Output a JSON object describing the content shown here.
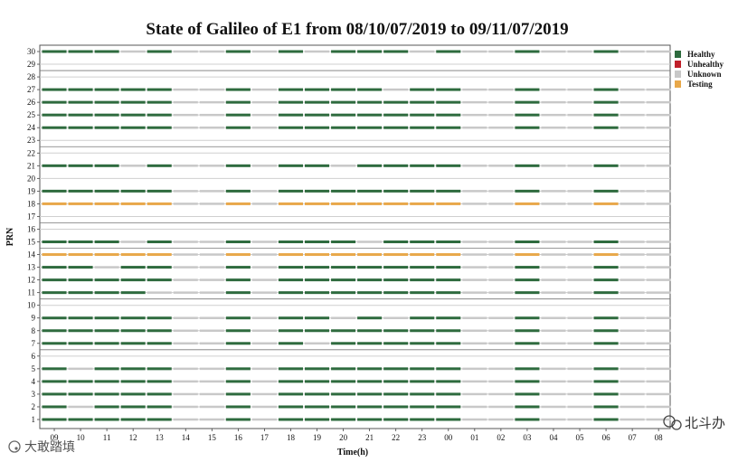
{
  "chart_data": {
    "type": "timeline",
    "title": "State of Galileo of E1 from 08/10/07/2019 to 09/11/07/2019",
    "xlabel": "Time(h)",
    "ylabel": "PRN",
    "x_ticks": [
      "09",
      "10",
      "11",
      "12",
      "13",
      "14",
      "15",
      "16",
      "17",
      "18",
      "19",
      "20",
      "21",
      "22",
      "23",
      "00",
      "01",
      "02",
      "03",
      "04",
      "05",
      "06",
      "07",
      "08"
    ],
    "y_ticks": [
      1,
      2,
      3,
      4,
      5,
      6,
      7,
      8,
      9,
      10,
      11,
      12,
      13,
      14,
      15,
      16,
      17,
      18,
      19,
      20,
      21,
      22,
      23,
      24,
      25,
      26,
      27,
      28,
      29,
      30
    ],
    "legend": [
      {
        "label": "Healthy",
        "color": "#2e6b3e"
      },
      {
        "label": "Unhealthy",
        "color": "#c0202a"
      },
      {
        "label": "Unknown",
        "color": "#c8c8c8"
      },
      {
        "label": "Testing",
        "color": "#e8a84a"
      }
    ],
    "legend_position": "top-right",
    "state_codes": {
      "H": "Healthy",
      "U": "Unknown",
      "T": "Testing"
    },
    "rows": [
      {
        "prn": 30,
        "states": "HHHUHUUHUHUHHHUHUUHUUHUU"
      },
      {
        "prn": 27,
        "states": "HHHHHUUHUHHHHUHHUUHUUHUU"
      },
      {
        "prn": 26,
        "states": "HHHHHUUHUHHHHHHHUUHUUHUU"
      },
      {
        "prn": 25,
        "states": "HHHHHUUHUHHHHHHHUUHUUHUU"
      },
      {
        "prn": 24,
        "states": "HHHHHUUHUHHHHHHHUUHUUHUU"
      },
      {
        "prn": 21,
        "states": "HHHUHUUHUHHUHHHHUUHUUHUU"
      },
      {
        "prn": 19,
        "states": "HHHHHUUHUHHHHHHHUUHUUHUU"
      },
      {
        "prn": 18,
        "states": "TTTTTUUTUTTTTTTTUUTUUTUU"
      },
      {
        "prn": 15,
        "states": "HHHUHUUHUHHHUHHHUUHUUHUU"
      },
      {
        "prn": 14,
        "states": "TTTTTUUTUTTTTTTTUUTUUTUU"
      },
      {
        "prn": 13,
        "states": "HHUHHUUHUHHHHHHHUUHUUHUU"
      },
      {
        "prn": 12,
        "states": "HHHHHUUHUHHHHHHHUUHUUHUU"
      },
      {
        "prn": 11,
        "states": "HHHHUUUHUHHHHHHHUUHUUHUU"
      },
      {
        "prn": 9,
        "states": "HHHHHUUHUHHUHUHHUUHUUHUU"
      },
      {
        "prn": 8,
        "states": "HHHHHUUHUHHHHHHHUUHUUHUU"
      },
      {
        "prn": 7,
        "states": "HHHHHUUHUHUHHHHHUUHUUHUU"
      },
      {
        "prn": 5,
        "states": "HUHHHUUHUHHHHHHHUUHUUHUU"
      },
      {
        "prn": 4,
        "states": "HHHHHUUHUHHHHHHHUUHUUHUU"
      },
      {
        "prn": 3,
        "states": "HHHHHUUHUHHHHHHHUUHUUHUU"
      },
      {
        "prn": 2,
        "states": "HUHHHUUHUHHHHHHHUUHUUHUU"
      },
      {
        "prn": 1,
        "states": "HHHHHUUHUHHHHHHHUUHUUHUU"
      }
    ]
  },
  "watermarks": {
    "left": "大敢踏填",
    "right": "北斗办"
  }
}
